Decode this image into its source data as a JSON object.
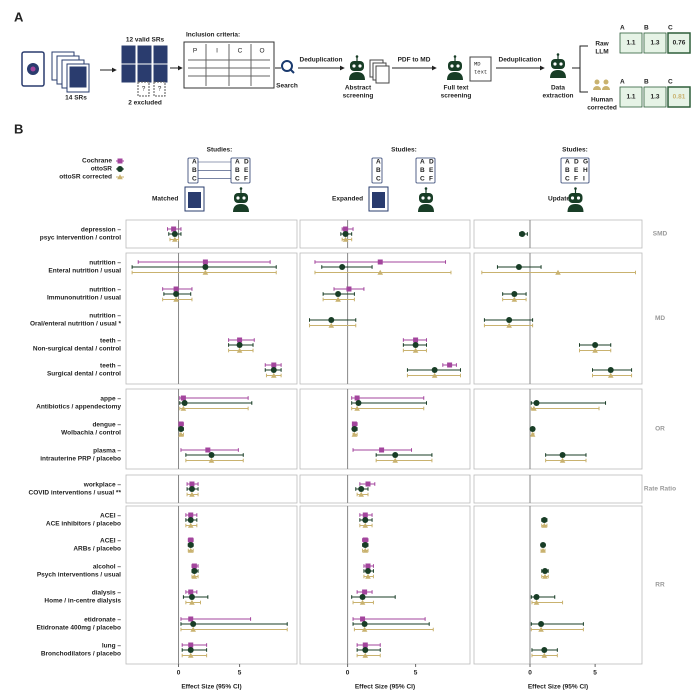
{
  "diagram": {
    "label": "A",
    "sr_count": "14 SRs",
    "valid": "12 valid SRs",
    "excluded": "2 excluded",
    "question_marks": [
      "?",
      "?"
    ],
    "criteria_title": "Inclusion criteria:",
    "criteria": [
      "P",
      "I",
      "C",
      "O"
    ],
    "steps": {
      "search": "Search",
      "dedup1": "Deduplication",
      "abstract": [
        "Abstract",
        "screening"
      ],
      "pdf": "PDF to MD",
      "fulltext": [
        "Full text",
        "screening"
      ],
      "md_doc": [
        "MD",
        "text"
      ],
      "dedup2": "Deduplication",
      "extraction": [
        "Data",
        "extraction"
      ]
    },
    "raw": {
      "label": [
        "Raw",
        "LLM"
      ],
      "columns": [
        "A",
        "B",
        "C"
      ],
      "values": [
        1.1,
        1.3,
        0.76
      ]
    },
    "human": {
      "label": [
        "Human",
        "corrected"
      ],
      "columns": [
        "A",
        "B",
        "C"
      ],
      "values": [
        1.1,
        1.3,
        0.81
      ]
    }
  },
  "chart_data": {
    "type": "forest",
    "label": "B",
    "xlabel": "Effect Size (95% CI)",
    "studies_label": "Studies:",
    "legend": [
      {
        "name": "Cochrane",
        "color": "#a3459d",
        "marker": "square"
      },
      {
        "name": "ottoSR",
        "color": "#183d26",
        "marker": "circle"
      },
      {
        "name": "ottoSR corrected",
        "color": "#c9b26f",
        "marker": "triangle"
      }
    ],
    "groups": [
      {
        "name": "SMD",
        "rows": [
          {
            "outcome": "depression –",
            "comparison": "psyc intervention / control"
          }
        ]
      },
      {
        "name": "MD",
        "rows": [
          {
            "outcome": "nutrition –",
            "comparison": "Enteral nutrition / usual"
          },
          {
            "outcome": "nutrition –",
            "comparison": "Immunonutrition / usual"
          },
          {
            "outcome": "nutrition –",
            "comparison": "Oral/enteral nutrition / usual *"
          },
          {
            "outcome": "teeth –",
            "comparison": "Non-surgical dental / control"
          },
          {
            "outcome": "teeth –",
            "comparison": "Surgical dental / control"
          }
        ]
      },
      {
        "name": "OR",
        "rows": [
          {
            "outcome": "appe –",
            "comparison": "Antibiotics / appendectomy"
          },
          {
            "outcome": "dengue –",
            "comparison": "Wolbachia  / control"
          },
          {
            "outcome": "plasma –",
            "comparison": "intrauterine PRP / placebo"
          }
        ]
      },
      {
        "name": "Rate Ratio",
        "rows": [
          {
            "outcome": "workplace –",
            "comparison": "COVID interventions / usual **"
          }
        ]
      },
      {
        "name": "RR",
        "rows": [
          {
            "outcome": "ACEI –",
            "comparison": "ACE inhibitors / placebo"
          },
          {
            "outcome": "ACEI –",
            "comparison": "ARBs / placebo"
          },
          {
            "outcome": "alcohol –",
            "comparison": "Psych interventions / usual"
          },
          {
            "outcome": "dialysis –",
            "comparison": "Home / in-centre dialysis"
          },
          {
            "outcome": "etidronate –",
            "comparison": "Etidronate 400mg / placebo"
          },
          {
            "outcome": "lung –",
            "comparison": "Bronchodilators / placebo"
          }
        ]
      }
    ],
    "panels": [
      {
        "name": "Matched",
        "human_studies": [
          "A",
          "B",
          "C"
        ],
        "otto_studies": [
          "A",
          "B",
          "C",
          "D",
          "E",
          "F"
        ],
        "xlim": [
          -4.3,
          9.7
        ],
        "xticks": [
          0,
          5
        ],
        "reference": 0,
        "series": [
          {
            "values": [
              -0.4,
              2.2,
              -0.2,
              null,
              5.0,
              7.8,
              0.4,
              0.2,
              2.4,
              1.1,
              1.0,
              1.0,
              1.3,
              1.0,
              1.0,
              1.0
            ],
            "lower": [
              -0.9,
              -3.3,
              -1.3,
              null,
              4.1,
              7.1,
              0.1,
              0.1,
              0.2,
              0.7,
              0.6,
              0.8,
              1.1,
              0.6,
              0.2,
              0.3
            ],
            "upper": [
              0.2,
              7.5,
              1.1,
              null,
              6.2,
              8.4,
              5.7,
              0.4,
              4.9,
              1.6,
              1.5,
              1.2,
              1.6,
              1.5,
              5.9,
              2.3
            ]
          },
          {
            "values": [
              -0.3,
              2.2,
              -0.2,
              null,
              5.0,
              7.8,
              0.5,
              0.2,
              2.7,
              1.1,
              1.0,
              1.0,
              1.3,
              1.1,
              1.2,
              1.0
            ],
            "lower": [
              -0.8,
              -3.8,
              -1.2,
              null,
              4.1,
              7.1,
              0.1,
              0.1,
              0.6,
              0.7,
              0.6,
              0.8,
              1.1,
              0.4,
              0.2,
              0.3
            ],
            "upper": [
              0.2,
              8.0,
              1.0,
              null,
              6.1,
              8.4,
              6.0,
              0.4,
              5.3,
              1.6,
              1.5,
              1.2,
              1.6,
              2.4,
              8.9,
              2.3
            ]
          },
          {
            "values": [
              -0.3,
              2.2,
              -0.2,
              null,
              5.0,
              7.8,
              0.4,
              0.2,
              2.7,
              1.1,
              1.0,
              1.0,
              1.3,
              1.1,
              1.2,
              1.0
            ],
            "lower": [
              -0.7,
              -3.8,
              -1.3,
              null,
              4.1,
              7.2,
              0.1,
              0.1,
              0.6,
              0.7,
              0.6,
              0.8,
              1.1,
              0.6,
              0.2,
              0.3
            ],
            "upper": [
              0.0,
              8.0,
              1.1,
              null,
              6.1,
              8.4,
              5.7,
              0.4,
              5.3,
              1.6,
              1.5,
              1.2,
              1.6,
              1.8,
              8.9,
              2.3
            ]
          }
        ]
      },
      {
        "name": "Expanded",
        "human_studies": [
          "A",
          "B",
          "C"
        ],
        "otto_studies": [
          "A",
          "B",
          "C",
          "D",
          "E",
          "F"
        ],
        "xlim": [
          -3.5,
          9
        ],
        "xticks": [
          0,
          5
        ],
        "reference": 0,
        "series": [
          {
            "values": [
              -0.15,
              2.4,
              0.1,
              null,
              5.0,
              7.5,
              0.7,
              0.5,
              2.5,
              1.5,
              1.3,
              1.3,
              1.5,
              1.25,
              1.1,
              1.3
            ],
            "lower": [
              -0.4,
              -2.4,
              -1.0,
              null,
              4.1,
              7.0,
              0.3,
              0.4,
              0.4,
              0.9,
              0.9,
              1.1,
              1.2,
              0.7,
              0.4,
              0.7
            ],
            "upper": [
              0.4,
              7.2,
              1.2,
              null,
              5.8,
              8.0,
              5.6,
              0.7,
              4.7,
              2.0,
              1.8,
              1.5,
              1.9,
              1.8,
              5.7,
              2.4
            ]
          },
          {
            "values": [
              -0.15,
              -0.4,
              -0.7,
              -1.2,
              5.0,
              6.4,
              0.8,
              0.5,
              3.5,
              1.0,
              1.3,
              1.3,
              1.5,
              1.1,
              1.25,
              1.3
            ],
            "lower": [
              -0.5,
              -1.9,
              -1.8,
              -2.8,
              4.1,
              4.4,
              0.3,
              0.4,
              2.1,
              0.6,
              0.9,
              1.1,
              1.2,
              0.3,
              0.4,
              0.7
            ],
            "upper": [
              0.3,
              1.8,
              0.5,
              0.6,
              5.8,
              8.3,
              5.8,
              0.7,
              6.2,
              1.5,
              1.8,
              1.5,
              1.9,
              3.5,
              6.0,
              2.4
            ]
          },
          {
            "values": [
              -0.15,
              2.4,
              -0.7,
              -1.2,
              5.0,
              6.4,
              0.7,
              0.5,
              3.5,
              1.0,
              1.3,
              1.3,
              1.5,
              1.1,
              1.25,
              1.3
            ],
            "lower": [
              -0.4,
              -2.4,
              -1.8,
              -2.8,
              4.1,
              4.4,
              0.3,
              0.4,
              2.1,
              0.7,
              0.9,
              1.1,
              1.2,
              0.4,
              0.5,
              0.7
            ],
            "upper": [
              0.3,
              7.6,
              0.5,
              0.6,
              5.8,
              8.3,
              5.6,
              0.7,
              6.2,
              1.5,
              1.8,
              1.5,
              1.9,
              1.9,
              6.3,
              2.4
            ]
          }
        ]
      },
      {
        "name": "Update",
        "otto_studies": [
          "A",
          "B",
          "C",
          "D",
          "E",
          "F",
          "G",
          "H",
          "I"
        ],
        "xlim": [
          -4.3,
          8.6
        ],
        "xticks": [
          0,
          5
        ],
        "reference": 0,
        "series": [
          {
            "values": [
              null,
              null,
              null,
              null,
              null,
              null,
              null,
              null,
              null,
              null,
              null,
              null,
              null,
              null,
              null,
              null
            ],
            "lower": [
              null,
              null,
              null,
              null,
              null,
              null,
              null,
              null,
              null,
              null,
              null,
              null,
              null,
              null,
              null,
              null
            ],
            "upper": [
              null,
              null,
              null,
              null,
              null,
              null,
              null,
              null,
              null,
              null,
              null,
              null,
              null,
              null,
              null,
              null
            ]
          },
          {
            "values": [
              -0.6,
              -0.85,
              -1.2,
              -1.6,
              5.0,
              6.2,
              0.5,
              0.2,
              2.5,
              null,
              1.1,
              1.0,
              1.15,
              0.5,
              0.85,
              1.1
            ],
            "lower": [
              -0.8,
              -2.5,
              -2.1,
              -3.5,
              3.8,
              4.8,
              0.1,
              0.15,
              1.2,
              null,
              0.9,
              0.85,
              0.9,
              0.1,
              0.1,
              0.15
            ],
            "upper": [
              -0.2,
              0.85,
              -0.3,
              0.2,
              6.2,
              7.8,
              5.8,
              0.3,
              4.3,
              null,
              1.3,
              1.15,
              1.4,
              1.9,
              4.1,
              2.1
            ]
          },
          {
            "values": [
              null,
              2.15,
              -1.2,
              -1.6,
              5.0,
              6.2,
              0.3,
              0.2,
              2.5,
              null,
              1.1,
              1.0,
              1.15,
              0.5,
              0.85,
              1.1
            ],
            "lower": [
              null,
              -3.7,
              -2.1,
              -3.5,
              3.8,
              4.8,
              0.1,
              0.15,
              1.2,
              null,
              0.9,
              0.85,
              0.9,
              0.15,
              0.1,
              0.15
            ],
            "upper": [
              null,
              8.1,
              -0.3,
              0.2,
              6.2,
              7.8,
              5.3,
              0.3,
              4.3,
              null,
              1.3,
              1.15,
              1.4,
              2.5,
              4.1,
              2.1
            ]
          }
        ]
      }
    ]
  }
}
